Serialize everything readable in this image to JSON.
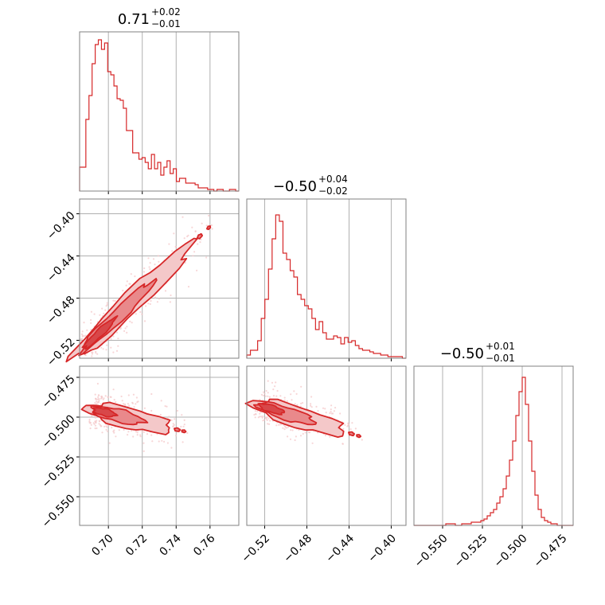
{
  "chart_data": [
    {
      "panel": "hist-param-1",
      "type": "histogram",
      "title": {
        "base": "0.71",
        "sup": "+0.02",
        "sub": "−0.01"
      },
      "x_range": [
        0.683,
        0.777
      ],
      "x_ticks": [
        0.7,
        0.72,
        0.74,
        0.76
      ],
      "x_tick_labels": [
        "0.70",
        "0.72",
        "0.74",
        "0.76"
      ],
      "bin_values": [
        0.15,
        0.15,
        0.45,
        0.6,
        0.8,
        0.92,
        0.95,
        0.89,
        0.93,
        0.75,
        0.73,
        0.66,
        0.58,
        0.57,
        0.52,
        0.38,
        0.38,
        0.24,
        0.24,
        0.2,
        0.21,
        0.18,
        0.14,
        0.23,
        0.14,
        0.18,
        0.1,
        0.15,
        0.19,
        0.11,
        0.14,
        0.06,
        0.08,
        0.08,
        0.05,
        0.05,
        0.05,
        0.04,
        0.02,
        0.02,
        0.02,
        0.01,
        0.01,
        0.0,
        0.01,
        0.01,
        0.0,
        0.0,
        0.01,
        0.01,
        0.0
      ],
      "grid": true
    },
    {
      "panel": "hist-param-2",
      "type": "histogram",
      "title": {
        "base": "−0.50",
        "sup": "+0.04",
        "sub": "−0.02"
      },
      "x_range": [
        -0.537,
        -0.386
      ],
      "x_ticks": [
        -0.52,
        -0.48,
        -0.44,
        -0.4
      ],
      "x_tick_labels": [
        "−0.52",
        "−0.48",
        "−0.44",
        "−0.40"
      ],
      "bin_values": [
        0.02,
        0.05,
        0.05,
        0.11,
        0.25,
        0.37,
        0.56,
        0.75,
        0.9,
        0.86,
        0.66,
        0.62,
        0.55,
        0.51,
        0.4,
        0.37,
        0.33,
        0.31,
        0.25,
        0.18,
        0.23,
        0.16,
        0.12,
        0.12,
        0.14,
        0.13,
        0.09,
        0.13,
        0.1,
        0.11,
        0.08,
        0.06,
        0.05,
        0.05,
        0.04,
        0.03,
        0.03,
        0.02,
        0.02,
        0.01,
        0.01,
        0.01,
        0.01,
        0.0
      ],
      "grid": true
    },
    {
      "panel": "hist-param-3",
      "type": "histogram",
      "title": {
        "base": "−0.50",
        "sup": "+0.01",
        "sub": "−0.01"
      },
      "x_range": [
        -0.568,
        -0.468
      ],
      "x_ticks": [
        -0.55,
        -0.525,
        -0.5,
        -0.475
      ],
      "x_tick_labels": [
        "−0.550",
        "−0.525",
        "−0.500",
        "−0.475"
      ],
      "bin_values": [
        0.0,
        0.0,
        0.0,
        0.0,
        0.0,
        0.0,
        0.0,
        0.0,
        0.0,
        0.0,
        0.01,
        0.01,
        0.01,
        0.0,
        0.0,
        0.01,
        0.01,
        0.01,
        0.02,
        0.02,
        0.02,
        0.03,
        0.04,
        0.06,
        0.08,
        0.1,
        0.14,
        0.18,
        0.23,
        0.31,
        0.41,
        0.53,
        0.69,
        0.84,
        0.93,
        0.76,
        0.53,
        0.34,
        0.19,
        0.1,
        0.05,
        0.03,
        0.02,
        0.01,
        0.01,
        0.0,
        0.0,
        0.0,
        0.0,
        0.0
      ],
      "grid": true
    },
    {
      "panel": "scatter-param-1-vs-2",
      "type": "scatter",
      "x_range": [
        0.683,
        0.777
      ],
      "y_range": [
        -0.537,
        -0.386
      ],
      "y_ticks": [
        -0.52,
        -0.48,
        -0.44,
        -0.4
      ],
      "y_tick_labels": [
        "−0.52",
        "−0.48",
        "−0.44",
        "−0.40"
      ],
      "trend": {
        "x_start": 0.684,
        "y_start": -0.53,
        "x_end": 0.76,
        "y_end": -0.412
      },
      "contour_levels": 3,
      "grid": true
    },
    {
      "panel": "scatter-param-1-vs-3",
      "type": "scatter",
      "x_range": [
        0.683,
        0.777
      ],
      "y_range": [
        -0.568,
        -0.468
      ],
      "y_ticks": [
        -0.55,
        -0.525,
        -0.5,
        -0.475
      ],
      "y_tick_labels": [
        "−0.550",
        "−0.525",
        "−0.500",
        "−0.475"
      ],
      "trend": {
        "x_start": 0.69,
        "y_start": -0.495,
        "x_end": 0.745,
        "y_end": -0.509
      },
      "contour_levels": 3,
      "grid": true
    },
    {
      "panel": "scatter-param-2-vs-3",
      "type": "scatter",
      "x_range": [
        -0.537,
        -0.386
      ],
      "y_range": [
        -0.568,
        -0.468
      ],
      "trend": {
        "x_start": -0.527,
        "y_start": -0.492,
        "x_end": -0.43,
        "y_end": -0.512
      },
      "contour_levels": 3,
      "grid": true
    }
  ],
  "colors": {
    "series": "#d62728",
    "fill_light": "#f4c8c9",
    "fill_mid": "#e9898b",
    "fill_dark": "#d84749",
    "grid": "#b0b0b0",
    "frame": "#808080"
  }
}
